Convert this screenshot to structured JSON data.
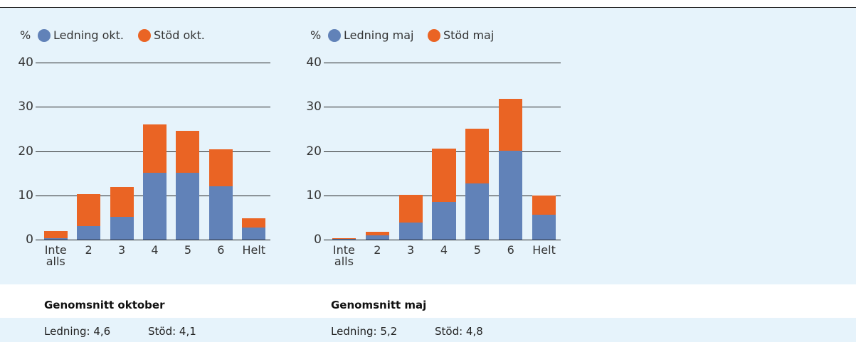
{
  "chart_data": [
    {
      "type": "stacked-bar",
      "y_label": "%",
      "categories": [
        "Inte alls",
        "2",
        "3",
        "4",
        "5",
        "6",
        "Helt"
      ],
      "series": [
        {
          "name": "Ledning okt.",
          "color": "#6182b8",
          "values": [
            0.3,
            3.0,
            5.1,
            15.1,
            15.1,
            12.0,
            2.7
          ]
        },
        {
          "name": "Stöd okt.",
          "color": "#ea6424",
          "values": [
            1.6,
            7.3,
            6.8,
            10.9,
            9.4,
            8.4,
            2.1
          ]
        }
      ],
      "ylim": [
        0,
        40
      ],
      "yticks": [
        0,
        10,
        20,
        30,
        40
      ],
      "grid": true
    },
    {
      "type": "stacked-bar",
      "y_label": "%",
      "categories": [
        "Inte alls",
        "2",
        "3",
        "4",
        "5",
        "6",
        "Helt"
      ],
      "series": [
        {
          "name": "Ledning maj",
          "color": "#6182b8",
          "values": [
            0.1,
            1.0,
            3.9,
            8.5,
            12.7,
            20.1,
            5.6
          ]
        },
        {
          "name": "Stöd maj",
          "color": "#ea6424",
          "values": [
            0.3,
            0.8,
            6.3,
            12.0,
            12.4,
            11.7,
            4.4
          ]
        }
      ],
      "ylim": [
        0,
        40
      ],
      "yticks": [
        0,
        10,
        20,
        30,
        40
      ],
      "grid": true
    }
  ],
  "averages": [
    {
      "title": "Genomsnitt oktober",
      "items": [
        "Ledning: 4,6",
        "Stöd: 4,1"
      ]
    },
    {
      "title": "Genomsnitt maj",
      "items": [
        "Ledning: 5,2",
        "Stöd: 4,8"
      ]
    }
  ]
}
